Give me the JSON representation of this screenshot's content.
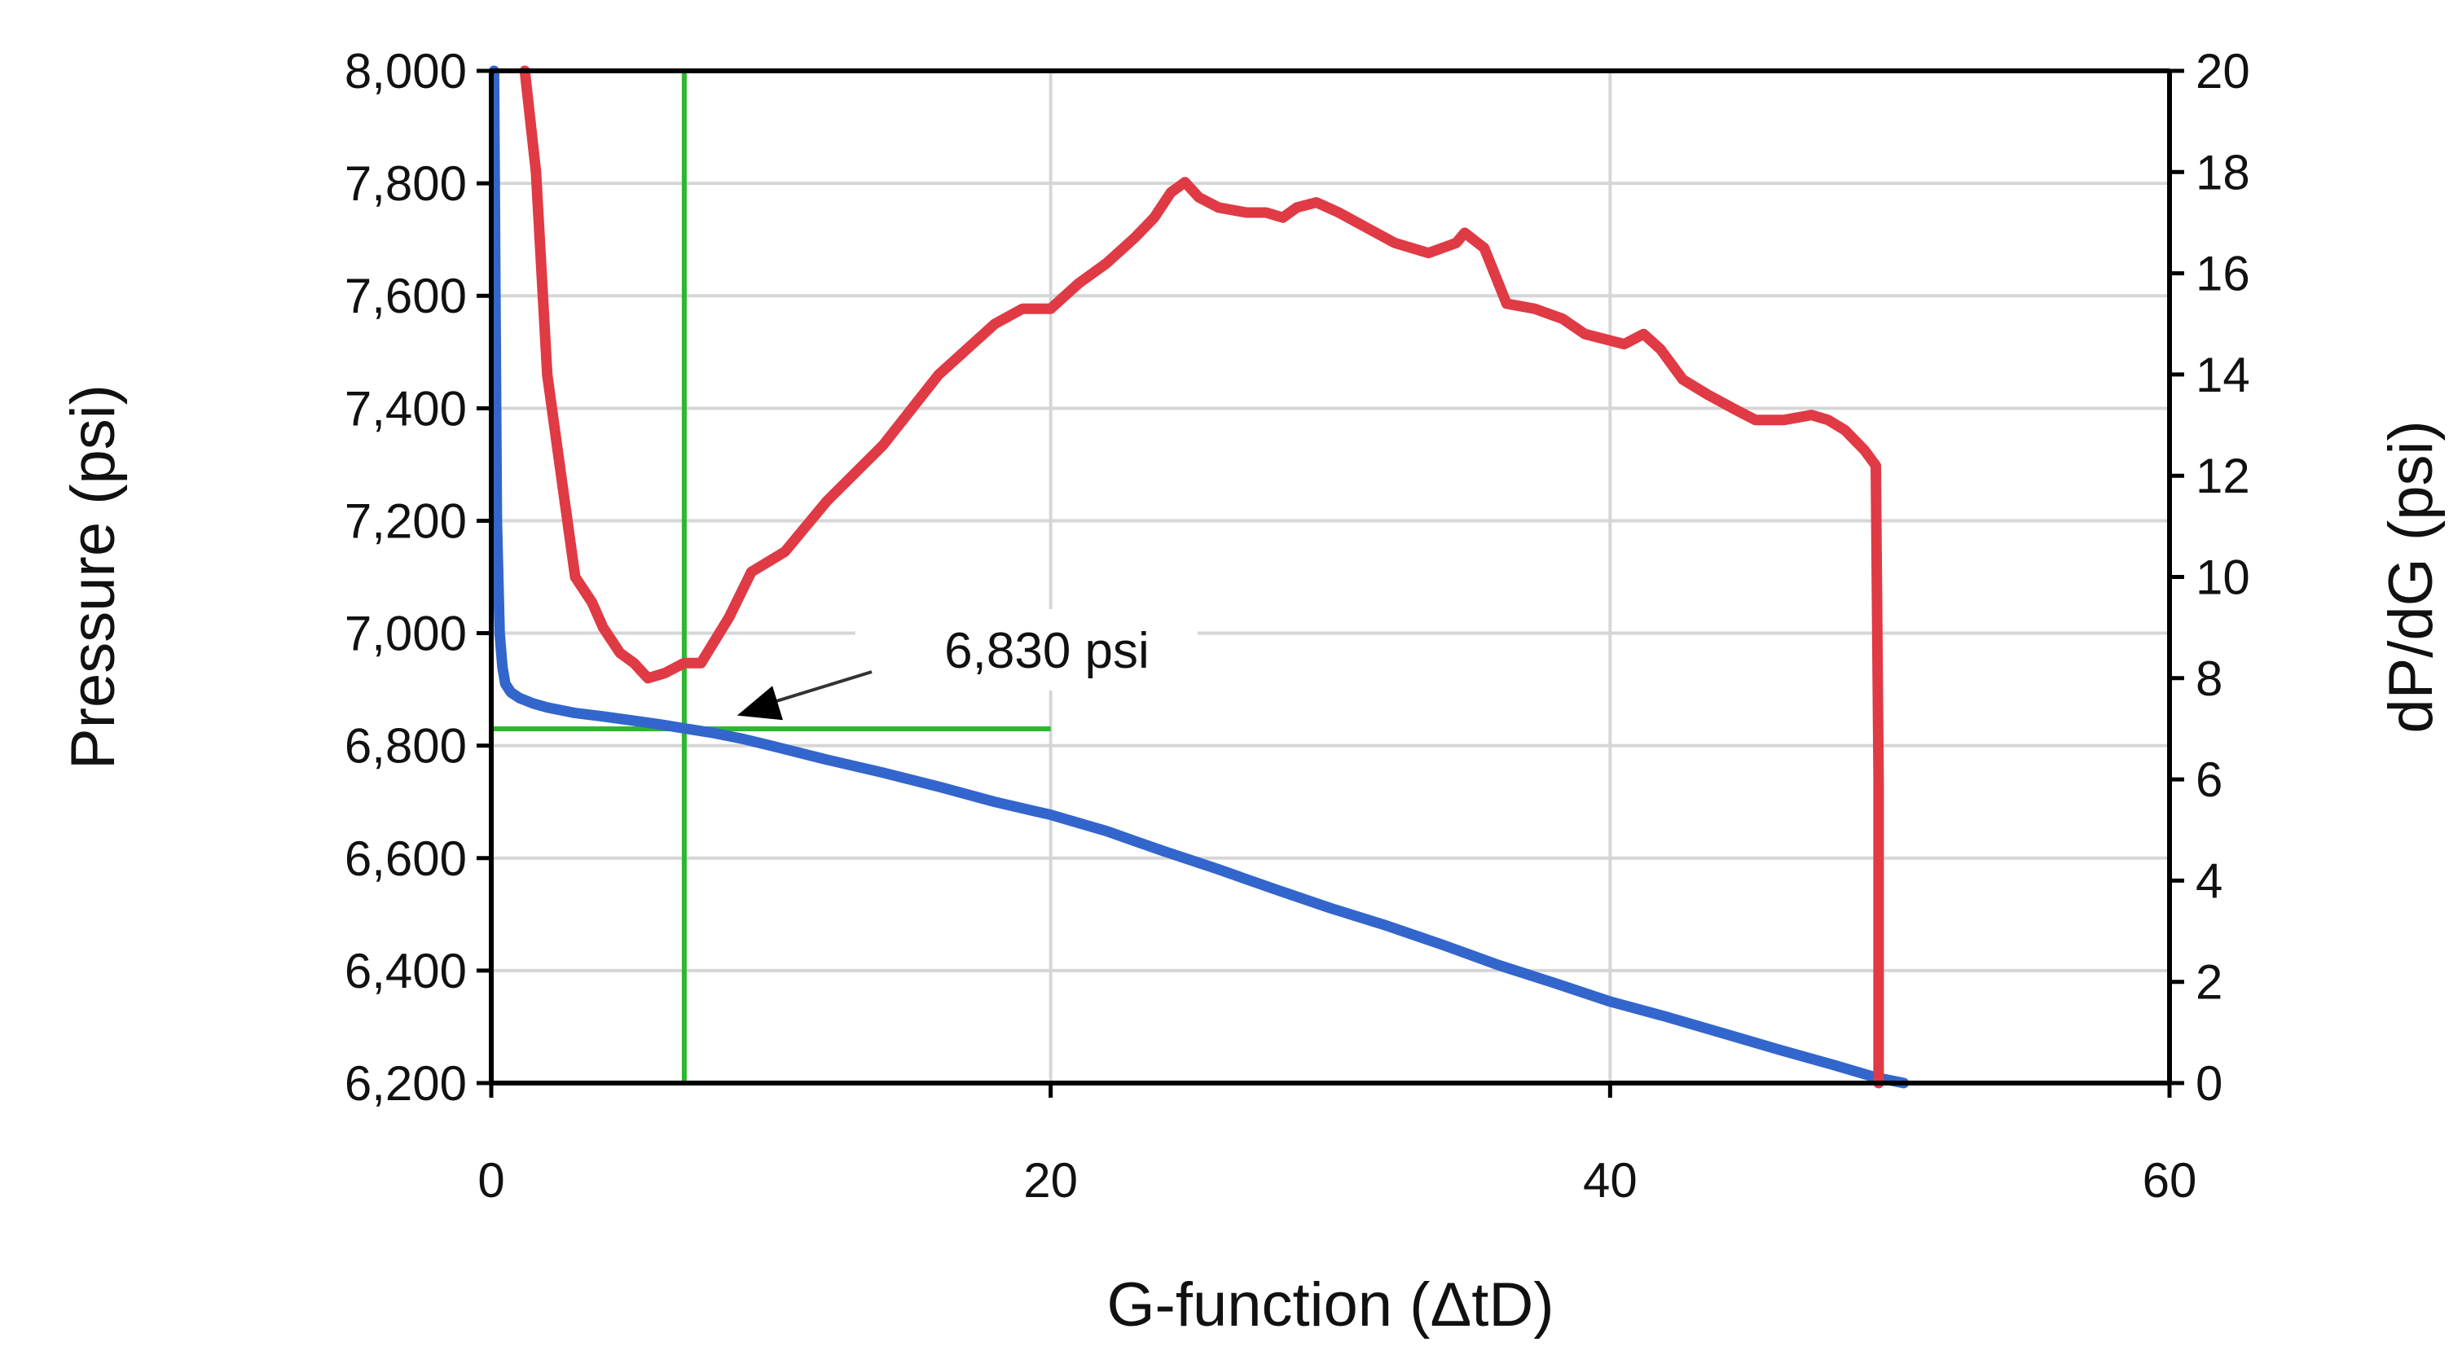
{
  "chart_data": {
    "type": "line",
    "title": "",
    "xlabel": "G-function (ΔtD)",
    "ylabel": "Pressure (psi)",
    "y2label": "dP/dG (psi)",
    "xlim": [
      0,
      60
    ],
    "ylim": [
      6200,
      8000
    ],
    "y2lim": [
      0,
      20
    ],
    "x_ticks": [
      0,
      20,
      40,
      60
    ],
    "y_ticks": [
      6200,
      6400,
      6600,
      6800,
      7000,
      7200,
      7400,
      7600,
      7800,
      8000
    ],
    "y2_ticks": [
      0,
      2,
      4,
      6,
      8,
      10,
      12,
      14,
      16,
      18,
      20
    ],
    "x_tick_labels": [
      "0",
      "20",
      "40",
      "60"
    ],
    "y_tick_labels": [
      "6,200",
      "6,400",
      "6,600",
      "6,800",
      "7,000",
      "7,200",
      "7,400",
      "7,600",
      "7,800",
      "8,000"
    ],
    "y2_tick_labels": [
      "0",
      "2",
      "4",
      "6",
      "8",
      "10",
      "12",
      "14",
      "16",
      "18",
      "20"
    ],
    "grid": true,
    "legend": "none",
    "series": [
      {
        "axis": "left",
        "color": "#3366cc",
        "x": [
          0.1,
          0.15,
          0.2,
          0.3,
          0.4,
          0.5,
          0.7,
          1.0,
          1.5,
          2,
          3,
          4,
          5,
          6,
          7,
          8,
          9,
          10,
          12,
          14,
          16,
          18,
          20,
          22,
          24,
          26,
          28,
          30,
          32,
          34,
          36,
          38,
          40,
          42,
          44,
          46,
          48,
          49.5,
          50.5
        ],
        "y": [
          8000,
          7600,
          7200,
          7000,
          6940,
          6910,
          6895,
          6885,
          6875,
          6868,
          6858,
          6852,
          6845,
          6838,
          6830,
          6822,
          6812,
          6800,
          6775,
          6752,
          6727,
          6700,
          6677,
          6648,
          6613,
          6580,
          6545,
          6511,
          6480,
          6446,
          6410,
          6378,
          6345,
          6318,
          6289,
          6260,
          6232,
          6210,
          6200
        ]
      },
      {
        "axis": "right",
        "color": "#e03a45",
        "x": [
          1.2,
          1.6,
          2,
          2.5,
          3,
          3.6,
          4,
          4.6,
          5.1,
          5.6,
          6.2,
          6.9,
          7.5,
          8.5,
          9.3,
          10.5,
          12,
          14,
          16,
          18,
          19,
          20,
          21,
          22,
          23,
          23.7,
          24.3,
          24.8,
          25.3,
          26,
          27,
          27.7,
          28.3,
          28.8,
          29.5,
          30.3,
          31.3,
          32.3,
          33.5,
          34.5,
          34.8,
          35.5,
          36.3,
          37.3,
          38.3,
          39.1,
          40.5,
          41.2,
          41.8,
          42.6,
          43.5,
          44.5,
          45.2,
          46.2,
          47.2,
          47.8,
          48.4,
          49.1,
          49.5,
          49.6,
          49.6
        ],
        "y": [
          20,
          18,
          14,
          12,
          10,
          9.5,
          9,
          8.5,
          8.3,
          8,
          8.1,
          8.3,
          8.3,
          9.2,
          10.1,
          10.5,
          11.5,
          12.6,
          14,
          15,
          15.3,
          15.3,
          15.8,
          16.2,
          16.7,
          17.1,
          17.6,
          17.8,
          17.5,
          17.3,
          17.2,
          17.2,
          17.1,
          17.3,
          17.4,
          17.2,
          16.9,
          16.6,
          16.4,
          16.6,
          16.8,
          16.5,
          15.4,
          15.3,
          15.1,
          14.8,
          14.6,
          14.8,
          14.5,
          13.9,
          13.6,
          13.3,
          13.1,
          13.1,
          13.2,
          13.1,
          12.9,
          12.5,
          12.2,
          6,
          0
        ]
      }
    ],
    "guides": {
      "color": "#2cb82c",
      "vertical_x": 6.9,
      "horizontal_y": 6830,
      "horizontal_x_range": [
        0,
        20
      ]
    },
    "annotations": [
      {
        "text": "6,830 psi",
        "target_x": 8.5,
        "target_y": 6845
      }
    ]
  }
}
